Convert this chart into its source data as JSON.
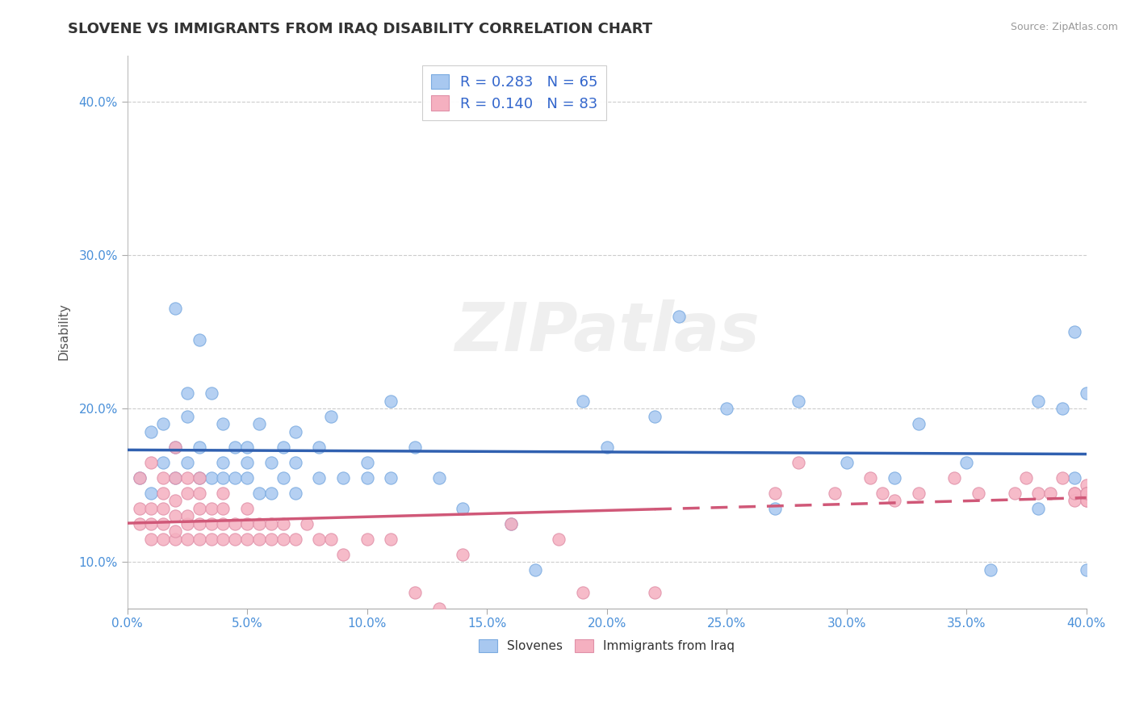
{
  "title": "SLOVENE VS IMMIGRANTS FROM IRAQ DISABILITY CORRELATION CHART",
  "source": "Source: ZipAtlas.com",
  "ylabel": "Disability",
  "xlim": [
    0.0,
    0.4
  ],
  "ylim": [
    0.07,
    0.43
  ],
  "xticks": [
    0.0,
    0.05,
    0.1,
    0.15,
    0.2,
    0.25,
    0.3,
    0.35,
    0.4
  ],
  "yticks": [
    0.1,
    0.2,
    0.3,
    0.4
  ],
  "slovene_color": "#a8c8f0",
  "iraq_color": "#f5b0c0",
  "slovene_line_color": "#3060b0",
  "iraq_line_color": "#d05878",
  "R_slovene": 0.283,
  "N_slovene": 65,
  "R_iraq": 0.14,
  "N_iraq": 83,
  "background_color": "#ffffff",
  "grid_color": "#cccccc",
  "watermark": "ZIPatlas",
  "slovene_scatter_x": [
    0.005,
    0.01,
    0.01,
    0.015,
    0.015,
    0.02,
    0.02,
    0.02,
    0.025,
    0.025,
    0.025,
    0.03,
    0.03,
    0.03,
    0.035,
    0.035,
    0.04,
    0.04,
    0.04,
    0.045,
    0.045,
    0.05,
    0.05,
    0.05,
    0.055,
    0.055,
    0.06,
    0.06,
    0.065,
    0.065,
    0.07,
    0.07,
    0.07,
    0.08,
    0.08,
    0.085,
    0.09,
    0.1,
    0.1,
    0.11,
    0.11,
    0.12,
    0.13,
    0.14,
    0.16,
    0.17,
    0.19,
    0.2,
    0.22,
    0.23,
    0.25,
    0.27,
    0.28,
    0.3,
    0.32,
    0.33,
    0.35,
    0.36,
    0.38,
    0.38,
    0.39,
    0.395,
    0.395,
    0.4,
    0.4
  ],
  "slovene_scatter_y": [
    0.155,
    0.145,
    0.185,
    0.165,
    0.19,
    0.155,
    0.175,
    0.265,
    0.165,
    0.195,
    0.21,
    0.155,
    0.175,
    0.245,
    0.155,
    0.21,
    0.155,
    0.165,
    0.19,
    0.155,
    0.175,
    0.155,
    0.165,
    0.175,
    0.145,
    0.19,
    0.145,
    0.165,
    0.155,
    0.175,
    0.145,
    0.165,
    0.185,
    0.155,
    0.175,
    0.195,
    0.155,
    0.155,
    0.165,
    0.155,
    0.205,
    0.175,
    0.155,
    0.135,
    0.125,
    0.095,
    0.205,
    0.175,
    0.195,
    0.26,
    0.2,
    0.135,
    0.205,
    0.165,
    0.155,
    0.19,
    0.165,
    0.095,
    0.135,
    0.205,
    0.2,
    0.25,
    0.155,
    0.21,
    0.095
  ],
  "iraq_scatter_x": [
    0.005,
    0.005,
    0.005,
    0.01,
    0.01,
    0.01,
    0.01,
    0.015,
    0.015,
    0.015,
    0.015,
    0.015,
    0.02,
    0.02,
    0.02,
    0.02,
    0.02,
    0.02,
    0.025,
    0.025,
    0.025,
    0.025,
    0.025,
    0.03,
    0.03,
    0.03,
    0.03,
    0.03,
    0.035,
    0.035,
    0.035,
    0.04,
    0.04,
    0.04,
    0.04,
    0.045,
    0.045,
    0.05,
    0.05,
    0.05,
    0.055,
    0.055,
    0.06,
    0.06,
    0.065,
    0.065,
    0.07,
    0.075,
    0.08,
    0.085,
    0.09,
    0.1,
    0.11,
    0.12,
    0.13,
    0.14,
    0.16,
    0.18,
    0.19,
    0.22,
    0.27,
    0.28,
    0.295,
    0.31,
    0.315,
    0.32,
    0.33,
    0.345,
    0.355,
    0.37,
    0.375,
    0.38,
    0.385,
    0.39,
    0.395,
    0.395,
    0.395,
    0.4,
    0.4,
    0.4,
    0.4,
    0.4,
    0.4
  ],
  "iraq_scatter_y": [
    0.125,
    0.135,
    0.155,
    0.115,
    0.125,
    0.135,
    0.165,
    0.115,
    0.125,
    0.135,
    0.145,
    0.155,
    0.115,
    0.12,
    0.13,
    0.14,
    0.155,
    0.175,
    0.115,
    0.125,
    0.13,
    0.145,
    0.155,
    0.115,
    0.125,
    0.135,
    0.145,
    0.155,
    0.115,
    0.125,
    0.135,
    0.115,
    0.125,
    0.135,
    0.145,
    0.115,
    0.125,
    0.115,
    0.125,
    0.135,
    0.115,
    0.125,
    0.115,
    0.125,
    0.115,
    0.125,
    0.115,
    0.125,
    0.115,
    0.115,
    0.105,
    0.115,
    0.115,
    0.08,
    0.07,
    0.105,
    0.125,
    0.115,
    0.08,
    0.08,
    0.145,
    0.165,
    0.145,
    0.155,
    0.145,
    0.14,
    0.145,
    0.155,
    0.145,
    0.145,
    0.155,
    0.145,
    0.145,
    0.155,
    0.145,
    0.14,
    0.145,
    0.14,
    0.145,
    0.15,
    0.145,
    0.14,
    0.145
  ],
  "iraq_solid_xlim": [
    0.0,
    0.22
  ],
  "iraq_dashed_xlim": [
    0.22,
    0.4
  ]
}
